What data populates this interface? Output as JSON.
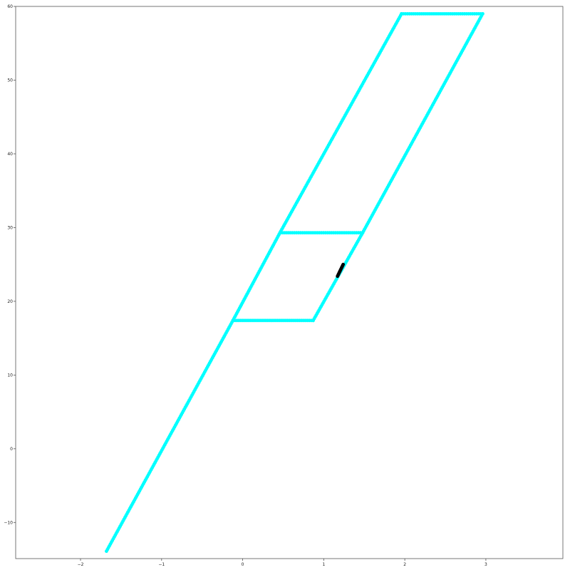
{
  "chart_data": {
    "type": "scatter",
    "title": "",
    "xlabel": "",
    "ylabel": "",
    "xlim": [
      -2.8,
      3.95
    ],
    "ylim": [
      -14.9,
      60.0
    ],
    "xticks": [
      -2,
      -1,
      0,
      1,
      2,
      3
    ],
    "yticks": [
      -10,
      0,
      10,
      20,
      30,
      40,
      50,
      60
    ],
    "xtick_labels": [
      "−2",
      "−1",
      "0",
      "1",
      "2",
      "3"
    ],
    "ytick_labels": [
      "−10",
      "0",
      "10",
      "20",
      "30",
      "40",
      "50",
      "60"
    ],
    "grid": false,
    "legend": "none",
    "series": [
      {
        "color": "#00ffff",
        "segments": [
          {
            "from": [
              -1.68,
              -13.9
            ],
            "to": [
              -0.12,
              17.4
            ],
            "n": 130
          },
          {
            "from": [
              -0.12,
              17.4
            ],
            "to": [
              0.87,
              17.4
            ],
            "n": 40
          },
          {
            "from": [
              -0.12,
              17.4
            ],
            "to": [
              0.46,
              29.3
            ],
            "n": 50
          },
          {
            "from": [
              0.46,
              29.3
            ],
            "to": [
              1.48,
              29.3
            ],
            "n": 40
          },
          {
            "from": [
              0.46,
              29.3
            ],
            "to": [
              1.96,
              59.0
            ],
            "n": 125
          },
          {
            "from": [
              1.96,
              59.0
            ],
            "to": [
              2.96,
              59.0
            ],
            "n": 40
          },
          {
            "from": [
              2.96,
              59.0
            ],
            "to": [
              1.48,
              29.3
            ],
            "n": 125
          },
          {
            "from": [
              1.48,
              29.3
            ],
            "to": [
              0.87,
              17.4
            ],
            "n": 50
          }
        ]
      },
      {
        "color": "#000000",
        "segments": [
          {
            "from": [
              1.17,
              23.4
            ],
            "to": [
              1.24,
              25.0
            ],
            "n": 14
          }
        ]
      }
    ]
  }
}
